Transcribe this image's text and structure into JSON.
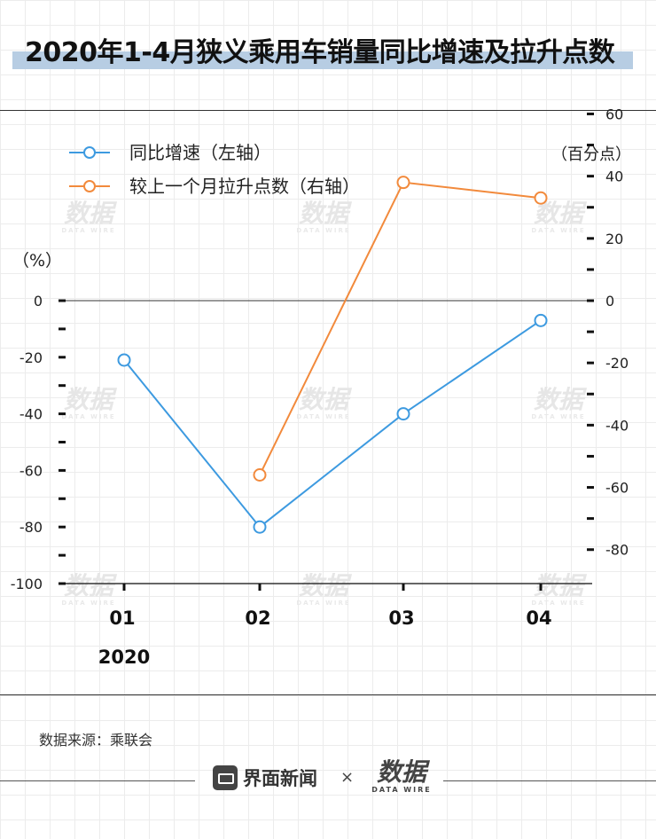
{
  "title": "2020年1-4月狭义乘用车销量同比增速及拉升点数",
  "chart_data": {
    "type": "line",
    "categories": [
      "01",
      "02",
      "03",
      "04"
    ],
    "year_label": "2020",
    "left_axis": {
      "unit_label": "（%）",
      "range": [
        -100,
        0
      ],
      "tick_labels": [
        0,
        -20,
        -40,
        -60,
        -80,
        -100
      ]
    },
    "right_axis": {
      "unit_label": "（百分点）",
      "range": [
        -80,
        60
      ],
      "tick_labels": [
        60,
        40,
        20,
        0,
        -20,
        -40,
        -60,
        -80
      ]
    },
    "series": [
      {
        "name": "同比增速（左轴）",
        "axis": "left",
        "color": "#3d9ae0",
        "values": [
          -21,
          -80,
          -40,
          -7
        ]
      },
      {
        "name": "较上一个月拉升点数（右轴）",
        "axis": "right",
        "color": "#f28a3c",
        "values": [
          null,
          -56,
          38,
          33
        ]
      }
    ],
    "legend_position": "top-left",
    "zero_line": true
  },
  "source": "数据来源：乘联会",
  "footer": {
    "brand": "界面新闻",
    "separator": "×",
    "logo_text": "数据",
    "logo_sub": "DATA WIRE"
  },
  "watermark": {
    "text": "数据",
    "sub": "DATA WIRE"
  }
}
